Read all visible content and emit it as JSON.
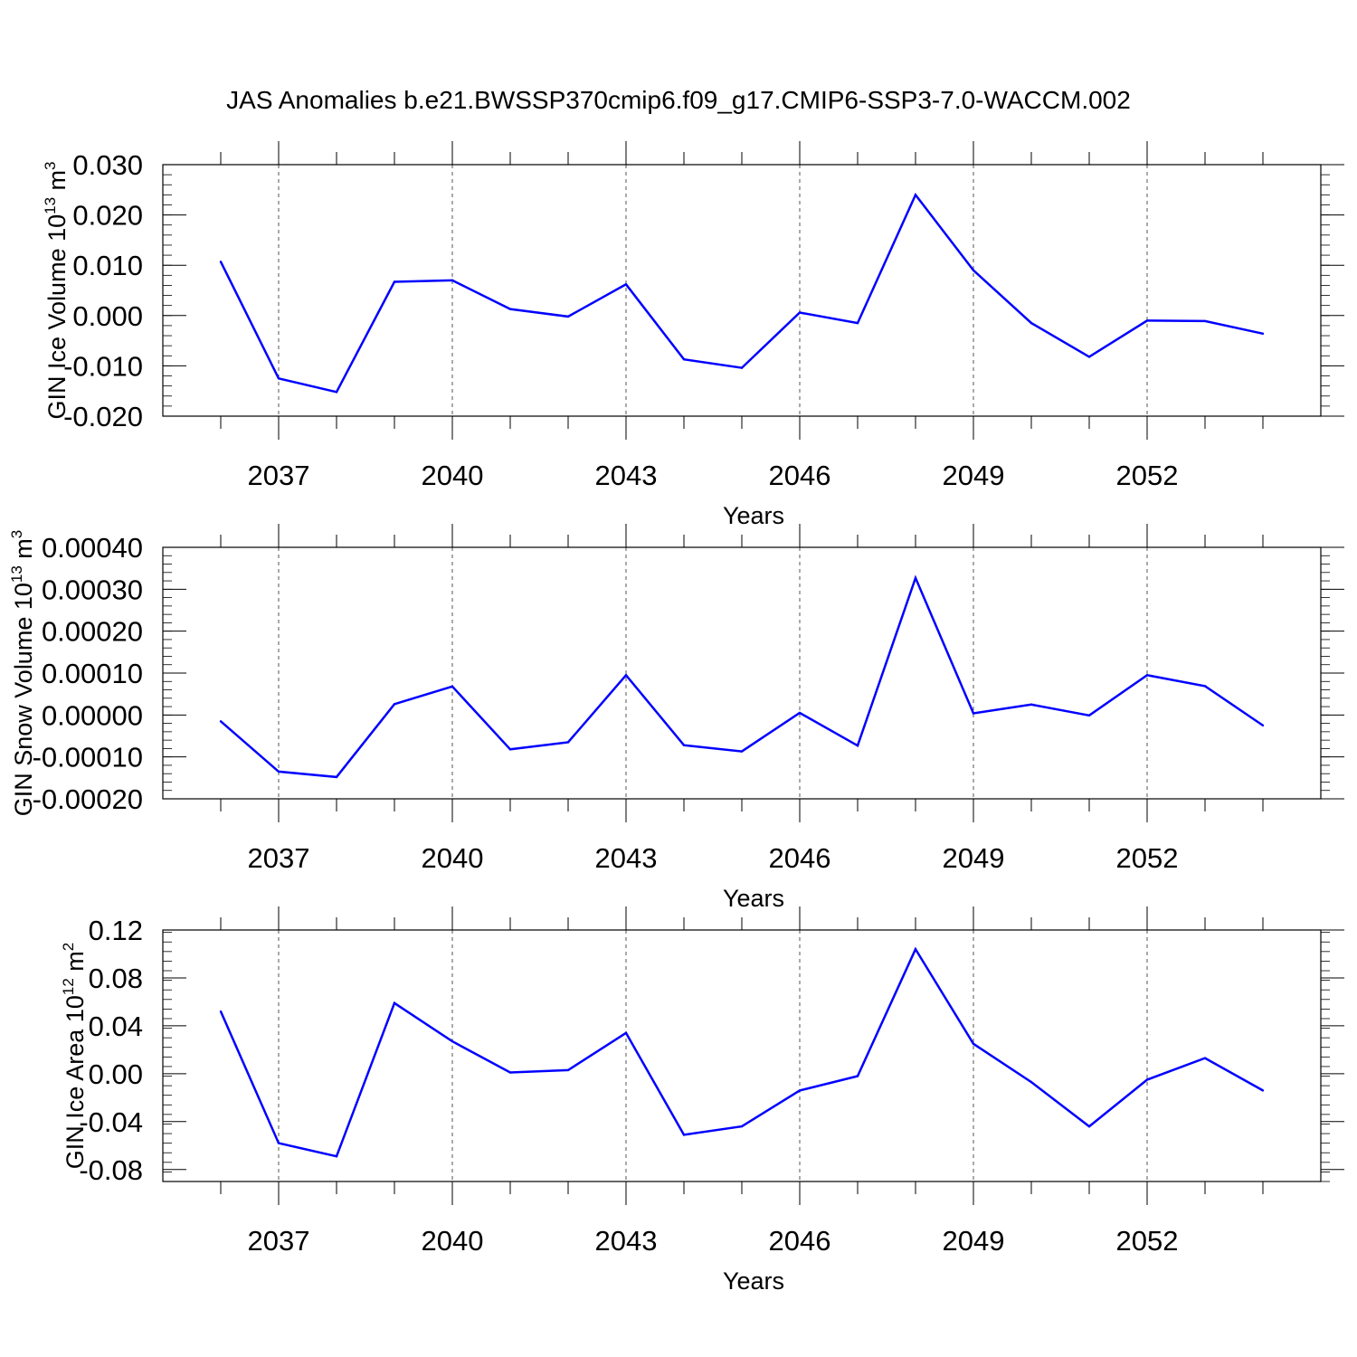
{
  "title": "JAS Anomalies b.e21.BWSSP370cmip6.f09_g17.CMIP6-SSP3-7.0-WACCM.002",
  "line_color": "#0000ff",
  "chart_data": [
    {
      "type": "line",
      "ylabel_main": "GIN Ice Volume 10",
      "ylabel_exp": "13",
      "ylabel_unit": " m",
      "ylabel_unit_exp": "3",
      "xlabel": "Years",
      "xlim": [
        2035.0,
        2055.0
      ],
      "ylim": [
        -0.02,
        0.03
      ],
      "xticks": [
        2037,
        2040,
        2043,
        2046,
        2049,
        2052
      ],
      "yticks": [
        -0.02,
        -0.01,
        0.0,
        0.01,
        0.02,
        0.03
      ],
      "ytick_labels": [
        "-0.020",
        "-0.010",
        "0.000",
        "0.010",
        "0.020",
        "0.030"
      ],
      "x": [
        2036,
        2037,
        2038,
        2039,
        2040,
        2041,
        2042,
        2043,
        2044,
        2045,
        2046,
        2047,
        2048,
        2049,
        2050,
        2051,
        2052,
        2053,
        2054
      ],
      "values": [
        0.0107,
        -0.0125,
        -0.0152,
        0.0067,
        0.007,
        0.0013,
        -0.0002,
        0.0062,
        -0.0087,
        -0.0104,
        0.0006,
        -0.0015,
        0.024,
        0.009,
        -0.0015,
        -0.0082,
        -0.001,
        -0.0011,
        -0.0036
      ]
    },
    {
      "type": "line",
      "ylabel_main": "GIN Snow Volume 10",
      "ylabel_exp": "13",
      "ylabel_unit": " m",
      "ylabel_unit_exp": "3",
      "xlabel": "Years",
      "xlim": [
        2035.0,
        2055.0
      ],
      "ylim": [
        -0.0002,
        0.0004
      ],
      "xticks": [
        2037,
        2040,
        2043,
        2046,
        2049,
        2052
      ],
      "yticks": [
        -0.0002,
        -0.0001,
        0.0,
        0.0001,
        0.0002,
        0.0003,
        0.0004
      ],
      "ytick_labels": [
        "-0.00020",
        "-0.00010",
        "0.00000",
        "0.00010",
        "0.00020",
        "0.00030",
        "0.00040"
      ],
      "x": [
        2036,
        2037,
        2038,
        2039,
        2040,
        2041,
        2042,
        2043,
        2044,
        2045,
        2046,
        2047,
        2048,
        2049,
        2050,
        2051,
        2052,
        2053,
        2054
      ],
      "values": [
        -1.5e-05,
        -0.000135,
        -0.000148,
        2.6e-05,
        6.8e-05,
        -8.2e-05,
        -6.5e-05,
        9.5e-05,
        -7.2e-05,
        -8.7e-05,
        5e-06,
        -7.3e-05,
        0.000327,
        4e-06,
        2.5e-05,
        -1e-06,
        9.5e-05,
        6.9e-05,
        -2.5e-05
      ]
    },
    {
      "type": "line",
      "ylabel_main": "GIN Ice Area 10",
      "ylabel_exp": "12",
      "ylabel_unit": " m",
      "ylabel_unit_exp": "2",
      "xlabel": "Years",
      "xlim": [
        2035.0,
        2055.0
      ],
      "ylim": [
        -0.09,
        0.12
      ],
      "xticks": [
        2037,
        2040,
        2043,
        2046,
        2049,
        2052
      ],
      "yticks": [
        -0.08,
        -0.04,
        0.0,
        0.04,
        0.08,
        0.12
      ],
      "ytick_labels": [
        "-0.08",
        "-0.04",
        "0.00",
        "0.04",
        "0.08",
        "0.12"
      ],
      "x": [
        2036,
        2037,
        2038,
        2039,
        2040,
        2041,
        2042,
        2043,
        2044,
        2045,
        2046,
        2047,
        2048,
        2049,
        2050,
        2051,
        2052,
        2053,
        2054
      ],
      "values": [
        0.052,
        -0.058,
        -0.069,
        0.059,
        0.027,
        0.001,
        0.003,
        0.034,
        -0.051,
        -0.044,
        -0.014,
        -0.002,
        0.104,
        0.025,
        -0.007,
        -0.044,
        -0.005,
        0.013,
        -0.014
      ]
    }
  ]
}
